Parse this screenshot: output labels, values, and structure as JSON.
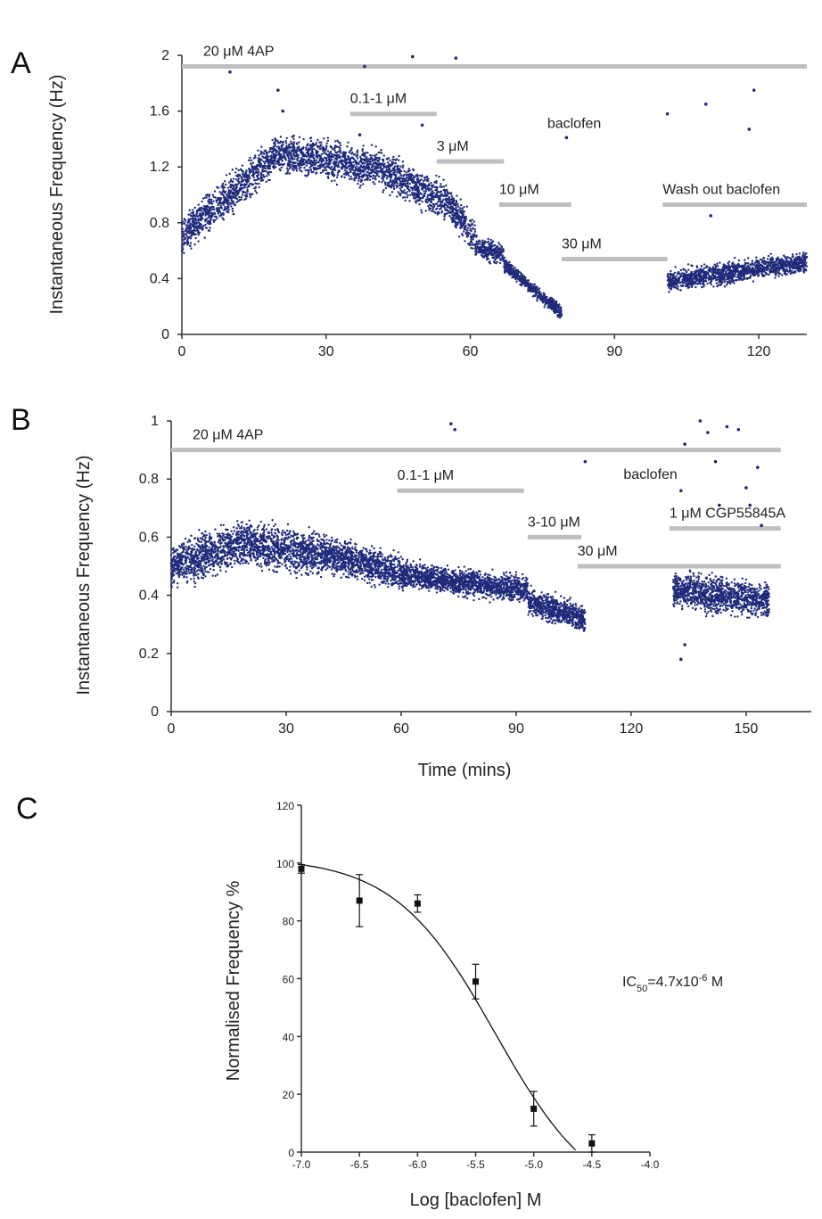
{
  "chart_data": [
    {
      "panel": "A",
      "type": "scatter",
      "ylabel": "Instantaneous  Frequency  (Hz)",
      "xlabel": "",
      "xlim": [
        0,
        130
      ],
      "ylim": [
        0,
        2
      ],
      "x_ticks": [
        "0",
        "30",
        "60",
        "90",
        "120"
      ],
      "y_ticks": [
        "0",
        "0.4",
        "0.8",
        "1.2",
        "1.6",
        "2"
      ],
      "segments": [
        {
          "x0": 0,
          "x1": 20,
          "y0": 0.7,
          "y1": 1.3,
          "noise": 0.09
        },
        {
          "x0": 20,
          "x1": 40,
          "y0": 1.3,
          "y1": 1.2,
          "noise": 0.09
        },
        {
          "x0": 40,
          "x1": 55,
          "y0": 1.2,
          "y1": 0.95,
          "noise": 0.09
        },
        {
          "x0": 55,
          "x1": 61,
          "y0": 0.95,
          "y1": 0.7,
          "noise": 0.08
        },
        {
          "x0": 61,
          "x1": 67,
          "y0": 0.62,
          "y1": 0.58,
          "noise": 0.05
        },
        {
          "x0": 67,
          "x1": 79,
          "y0": 0.5,
          "y1": 0.15,
          "noise": 0.03
        },
        {
          "x0": 101,
          "x1": 130,
          "y0": 0.38,
          "y1": 0.52,
          "noise": 0.05
        }
      ],
      "outliers": [
        [
          10,
          1.88
        ],
        [
          20,
          1.75
        ],
        [
          21,
          1.6
        ],
        [
          37,
          1.43
        ],
        [
          38,
          1.92
        ],
        [
          48,
          1.99
        ],
        [
          50,
          1.5
        ],
        [
          57,
          1.98
        ],
        [
          80,
          1.41
        ],
        [
          101,
          1.58
        ],
        [
          109,
          1.65
        ],
        [
          110,
          0.85
        ],
        [
          118,
          1.47
        ],
        [
          119,
          1.75
        ]
      ],
      "bars": [
        {
          "label": "20 μM 4AP",
          "x0": 0,
          "x1": 130,
          "y": 1.92
        },
        {
          "label": "0.1-1 μM",
          "x0": 35,
          "x1": 53,
          "y": 1.58
        },
        {
          "label": "3 μM",
          "x0": 53,
          "x1": 67,
          "y": 1.24
        },
        {
          "label": "10 μM",
          "x0": 66,
          "x1": 81,
          "y": 0.93
        },
        {
          "label": "30 μM",
          "x0": 79,
          "x1": 101,
          "y": 0.54
        },
        {
          "label": "Wash out baclofen",
          "x0": 100,
          "x1": 130,
          "y": 0.93
        }
      ],
      "annotations": [
        {
          "text": "baclofen",
          "x": 76,
          "y": 1.48
        }
      ]
    },
    {
      "panel": "B",
      "type": "scatter",
      "ylabel": "Instantaneous  Frequency  (Hz)",
      "xlabel": "Time (mins)",
      "xlim": [
        0,
        167
      ],
      "ylim": [
        0,
        1
      ],
      "x_ticks": [
        "0",
        "30",
        "60",
        "90",
        "120",
        "150"
      ],
      "y_ticks": [
        "0",
        "0.2",
        "0.4",
        "0.6",
        "0.8",
        "1"
      ],
      "segments": [
        {
          "x0": 0,
          "x1": 18,
          "y0": 0.5,
          "y1": 0.58,
          "noise": 0.05
        },
        {
          "x0": 18,
          "x1": 40,
          "y0": 0.58,
          "y1": 0.54,
          "noise": 0.05
        },
        {
          "x0": 40,
          "x1": 60,
          "y0": 0.54,
          "y1": 0.48,
          "noise": 0.04
        },
        {
          "x0": 60,
          "x1": 93,
          "y0": 0.47,
          "y1": 0.42,
          "noise": 0.03
        },
        {
          "x0": 93,
          "x1": 108,
          "y0": 0.38,
          "y1": 0.32,
          "noise": 0.03
        },
        {
          "x0": 131,
          "x1": 156,
          "y0": 0.42,
          "y1": 0.38,
          "noise": 0.04
        }
      ],
      "outliers": [
        [
          73,
          0.99
        ],
        [
          74,
          0.97
        ],
        [
          108,
          0.86
        ],
        [
          133,
          0.76
        ],
        [
          134,
          0.92
        ],
        [
          138,
          1.0
        ],
        [
          140,
          0.96
        ],
        [
          142,
          0.86
        ],
        [
          143,
          0.71
        ],
        [
          145,
          0.98
        ],
        [
          148,
          0.97
        ],
        [
          150,
          0.77
        ],
        [
          151,
          0.71
        ],
        [
          153,
          0.84
        ],
        [
          154,
          0.64
        ],
        [
          134,
          0.23
        ],
        [
          133,
          0.18
        ]
      ],
      "bars": [
        {
          "label": "20 μM 4AP",
          "x0": 0,
          "x1": 159,
          "y": 0.9
        },
        {
          "label": "0.1-1 μM",
          "x0": 59,
          "x1": 92,
          "y": 0.76
        },
        {
          "label": "3-10 μM",
          "x0": 93,
          "x1": 107,
          "y": 0.6
        },
        {
          "label": "30 μM",
          "x0": 106,
          "x1": 159,
          "y": 0.5
        },
        {
          "label": "1 μM CGP55845A",
          "x0": 130,
          "x1": 159,
          "y": 0.63
        }
      ],
      "annotations": [
        {
          "text": "baclofen",
          "x": 118,
          "y": 0.8
        }
      ]
    },
    {
      "panel": "C",
      "type": "scatter",
      "ylabel": "Normalised Frequency %",
      "xlabel": "Log [baclofen]  M",
      "xlim": [
        -7.0,
        -4.0
      ],
      "ylim": [
        0,
        120
      ],
      "x_ticks": [
        "-7.0",
        "-6.5",
        "-6.0",
        "-5.5",
        "-5.0",
        "-4.5",
        "-4.0"
      ],
      "y_ticks": [
        "0",
        "20",
        "40",
        "60",
        "80",
        "100",
        "120"
      ],
      "points": [
        {
          "x": -7.0,
          "y": 98,
          "err": 1.5
        },
        {
          "x": -6.5,
          "y": 87,
          "err": 9
        },
        {
          "x": -6.0,
          "y": 86,
          "err": 3
        },
        {
          "x": -5.5,
          "y": 59,
          "err": 6
        },
        {
          "x": -5.0,
          "y": 15,
          "err": 6
        },
        {
          "x": -4.5,
          "y": 3,
          "err": 3
        }
      ],
      "fit": {
        "top": 102,
        "bottom": -20,
        "log_ec50": -5.33,
        "hill": 1.0
      },
      "annotation": {
        "prefix": "IC",
        "sub": "50",
        "middle": "=4.7x10",
        "sup": "-6",
        "suffix": " M"
      }
    }
  ],
  "labels": {
    "panel_a": "A",
    "panel_b": "B",
    "panel_c": "C"
  }
}
